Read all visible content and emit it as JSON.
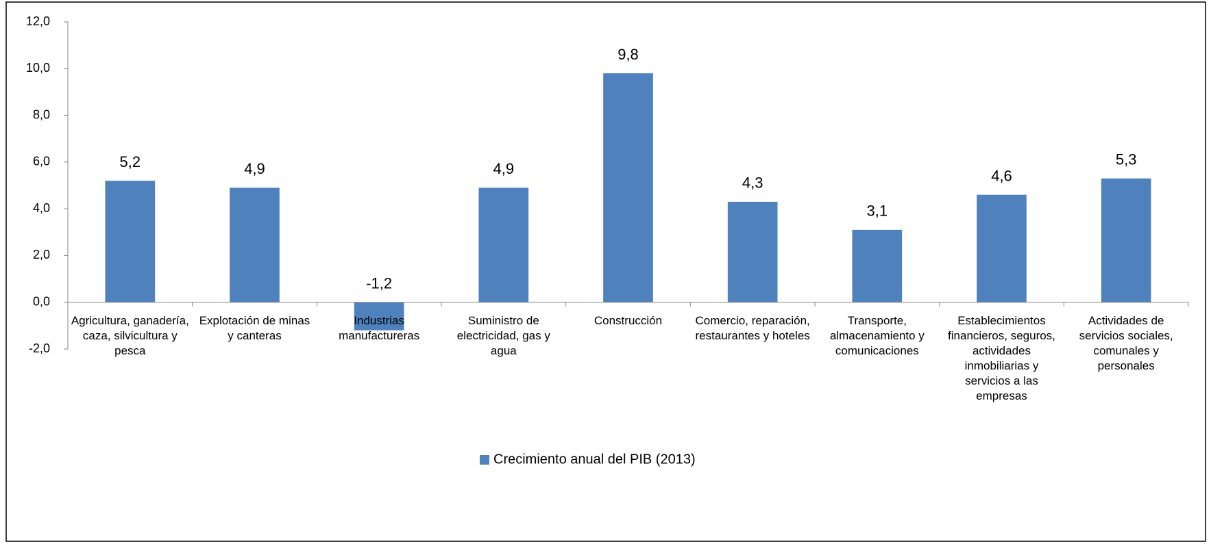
{
  "chart_data": {
    "type": "bar",
    "categories": [
      "Agricultura, ganadería, caza, silvicultura y pesca",
      "Explotación de minas y canteras",
      "Industrias manufactureras",
      "Suministro de electricidad, gas y agua",
      "Construcción",
      "Comercio, reparación, restaurantes y hoteles",
      "Transporte, almacenamiento y comunicaciones",
      "Establecimientos financieros, seguros, actividades inmobiliarias y servicios a las empresas",
      "Actividades de servicios sociales, comunales y personales"
    ],
    "series": [
      {
        "name": "Crecimiento anual del PIB (2013)",
        "color": "#4f81bd",
        "values": [
          5.2,
          4.9,
          -1.2,
          4.9,
          9.8,
          4.3,
          3.1,
          4.6,
          5.3
        ],
        "value_labels": [
          "5,2",
          "4,9",
          "-1,2",
          "4,9",
          "9,8",
          "4,3",
          "3,1",
          "4,6",
          "5,3"
        ]
      }
    ],
    "ylim": [
      -2,
      12
    ],
    "yticks": [
      {
        "value": -2,
        "label": "-2,0"
      },
      {
        "value": 0,
        "label": "0,0"
      },
      {
        "value": 2,
        "label": "2,0"
      },
      {
        "value": 4,
        "label": "4,0"
      },
      {
        "value": 6,
        "label": "6,0"
      },
      {
        "value": 8,
        "label": "8,0"
      },
      {
        "value": 10,
        "label": "10,0"
      },
      {
        "value": 12,
        "label": "12,0"
      }
    ],
    "grid": false,
    "legend": "bottom"
  }
}
